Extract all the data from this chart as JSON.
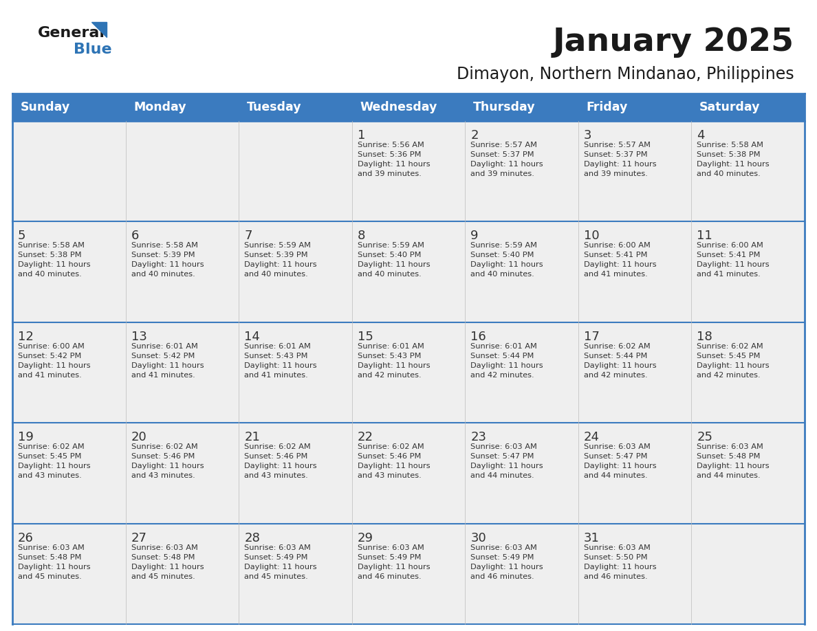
{
  "title": "January 2025",
  "subtitle": "Dimayon, Northern Mindanao, Philippines",
  "days_of_week": [
    "Sunday",
    "Monday",
    "Tuesday",
    "Wednesday",
    "Thursday",
    "Friday",
    "Saturday"
  ],
  "header_bg_color": "#3B7BBF",
  "header_text_color": "#FFFFFF",
  "cell_bg_color": "#EFEFEF",
  "border_color": "#3B7BBF",
  "day_number_color": "#333333",
  "text_color": "#333333",
  "logo_general_color": "#1a1a1a",
  "logo_blue_color": "#2E74B5",
  "calendar_data": [
    [
      {
        "day": 0,
        "info": ""
      },
      {
        "day": 0,
        "info": ""
      },
      {
        "day": 0,
        "info": ""
      },
      {
        "day": 1,
        "info": "Sunrise: 5:56 AM\nSunset: 5:36 PM\nDaylight: 11 hours\nand 39 minutes."
      },
      {
        "day": 2,
        "info": "Sunrise: 5:57 AM\nSunset: 5:37 PM\nDaylight: 11 hours\nand 39 minutes."
      },
      {
        "day": 3,
        "info": "Sunrise: 5:57 AM\nSunset: 5:37 PM\nDaylight: 11 hours\nand 39 minutes."
      },
      {
        "day": 4,
        "info": "Sunrise: 5:58 AM\nSunset: 5:38 PM\nDaylight: 11 hours\nand 40 minutes."
      }
    ],
    [
      {
        "day": 5,
        "info": "Sunrise: 5:58 AM\nSunset: 5:38 PM\nDaylight: 11 hours\nand 40 minutes."
      },
      {
        "day": 6,
        "info": "Sunrise: 5:58 AM\nSunset: 5:39 PM\nDaylight: 11 hours\nand 40 minutes."
      },
      {
        "day": 7,
        "info": "Sunrise: 5:59 AM\nSunset: 5:39 PM\nDaylight: 11 hours\nand 40 minutes."
      },
      {
        "day": 8,
        "info": "Sunrise: 5:59 AM\nSunset: 5:40 PM\nDaylight: 11 hours\nand 40 minutes."
      },
      {
        "day": 9,
        "info": "Sunrise: 5:59 AM\nSunset: 5:40 PM\nDaylight: 11 hours\nand 40 minutes."
      },
      {
        "day": 10,
        "info": "Sunrise: 6:00 AM\nSunset: 5:41 PM\nDaylight: 11 hours\nand 41 minutes."
      },
      {
        "day": 11,
        "info": "Sunrise: 6:00 AM\nSunset: 5:41 PM\nDaylight: 11 hours\nand 41 minutes."
      }
    ],
    [
      {
        "day": 12,
        "info": "Sunrise: 6:00 AM\nSunset: 5:42 PM\nDaylight: 11 hours\nand 41 minutes."
      },
      {
        "day": 13,
        "info": "Sunrise: 6:01 AM\nSunset: 5:42 PM\nDaylight: 11 hours\nand 41 minutes."
      },
      {
        "day": 14,
        "info": "Sunrise: 6:01 AM\nSunset: 5:43 PM\nDaylight: 11 hours\nand 41 minutes."
      },
      {
        "day": 15,
        "info": "Sunrise: 6:01 AM\nSunset: 5:43 PM\nDaylight: 11 hours\nand 42 minutes."
      },
      {
        "day": 16,
        "info": "Sunrise: 6:01 AM\nSunset: 5:44 PM\nDaylight: 11 hours\nand 42 minutes."
      },
      {
        "day": 17,
        "info": "Sunrise: 6:02 AM\nSunset: 5:44 PM\nDaylight: 11 hours\nand 42 minutes."
      },
      {
        "day": 18,
        "info": "Sunrise: 6:02 AM\nSunset: 5:45 PM\nDaylight: 11 hours\nand 42 minutes."
      }
    ],
    [
      {
        "day": 19,
        "info": "Sunrise: 6:02 AM\nSunset: 5:45 PM\nDaylight: 11 hours\nand 43 minutes."
      },
      {
        "day": 20,
        "info": "Sunrise: 6:02 AM\nSunset: 5:46 PM\nDaylight: 11 hours\nand 43 minutes."
      },
      {
        "day": 21,
        "info": "Sunrise: 6:02 AM\nSunset: 5:46 PM\nDaylight: 11 hours\nand 43 minutes."
      },
      {
        "day": 22,
        "info": "Sunrise: 6:02 AM\nSunset: 5:46 PM\nDaylight: 11 hours\nand 43 minutes."
      },
      {
        "day": 23,
        "info": "Sunrise: 6:03 AM\nSunset: 5:47 PM\nDaylight: 11 hours\nand 44 minutes."
      },
      {
        "day": 24,
        "info": "Sunrise: 6:03 AM\nSunset: 5:47 PM\nDaylight: 11 hours\nand 44 minutes."
      },
      {
        "day": 25,
        "info": "Sunrise: 6:03 AM\nSunset: 5:48 PM\nDaylight: 11 hours\nand 44 minutes."
      }
    ],
    [
      {
        "day": 26,
        "info": "Sunrise: 6:03 AM\nSunset: 5:48 PM\nDaylight: 11 hours\nand 45 minutes."
      },
      {
        "day": 27,
        "info": "Sunrise: 6:03 AM\nSunset: 5:48 PM\nDaylight: 11 hours\nand 45 minutes."
      },
      {
        "day": 28,
        "info": "Sunrise: 6:03 AM\nSunset: 5:49 PM\nDaylight: 11 hours\nand 45 minutes."
      },
      {
        "day": 29,
        "info": "Sunrise: 6:03 AM\nSunset: 5:49 PM\nDaylight: 11 hours\nand 46 minutes."
      },
      {
        "day": 30,
        "info": "Sunrise: 6:03 AM\nSunset: 5:49 PM\nDaylight: 11 hours\nand 46 minutes."
      },
      {
        "day": 31,
        "info": "Sunrise: 6:03 AM\nSunset: 5:50 PM\nDaylight: 11 hours\nand 46 minutes."
      },
      {
        "day": 0,
        "info": ""
      }
    ]
  ]
}
